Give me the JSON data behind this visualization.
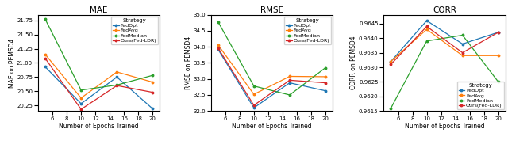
{
  "x": [
    5,
    10,
    15,
    20
  ],
  "mae": {
    "FedOpt": [
      20.93,
      20.28,
      20.75,
      20.19
    ],
    "FedAvg": [
      21.15,
      20.38,
      20.84,
      20.66
    ],
    "FedMedian": [
      21.77,
      20.52,
      20.61,
      20.78
    ],
    "Ours(Fed-LDR)": [
      21.08,
      20.18,
      20.6,
      20.48
    ]
  },
  "rmse": {
    "FedOpt": [
      33.92,
      32.1,
      32.88,
      32.63
    ],
    "FedAvg": [
      34.06,
      32.52,
      33.08,
      33.07
    ],
    "FedMedian": [
      34.78,
      32.78,
      32.5,
      33.35
    ],
    "Ours(Fed-LDR)": [
      33.96,
      32.18,
      32.96,
      32.88
    ]
  },
  "corr": {
    "FedOpt": [
      0.9632,
      0.9646,
      0.9638,
      0.9642
    ],
    "FedAvg": [
      0.9632,
      0.9643,
      0.9634,
      0.9634
    ],
    "FedMedian": [
      0.9616,
      0.9639,
      0.9641,
      0.9625
    ],
    "Ours(Fed-LDR)": [
      0.9631,
      0.9644,
      0.9635,
      0.9642
    ]
  },
  "colors": {
    "FedOpt": "#1f77b4",
    "FedAvg": "#ff7f0e",
    "FedMedian": "#2ca02c",
    "Ours(Fed-LDR)": "#d62728"
  },
  "mae_ylim": [
    20.15,
    21.85
  ],
  "rmse_ylim": [
    32.0,
    35.0
  ],
  "corr_ylim": [
    0.9615,
    0.9648
  ],
  "xlabel": "Number of Epochs Trained",
  "mae_ylabel": "MAE on PEMSD4",
  "rmse_ylabel": "RMSE on PEMSD4",
  "corr_ylabel": "CORR on PEMSD4",
  "mae_title": "MAE",
  "rmse_title": "RMSE",
  "corr_title": "CORR",
  "legend_title": "Strategy",
  "xticks": [
    6,
    8,
    10,
    12,
    14,
    16,
    18,
    20
  ]
}
